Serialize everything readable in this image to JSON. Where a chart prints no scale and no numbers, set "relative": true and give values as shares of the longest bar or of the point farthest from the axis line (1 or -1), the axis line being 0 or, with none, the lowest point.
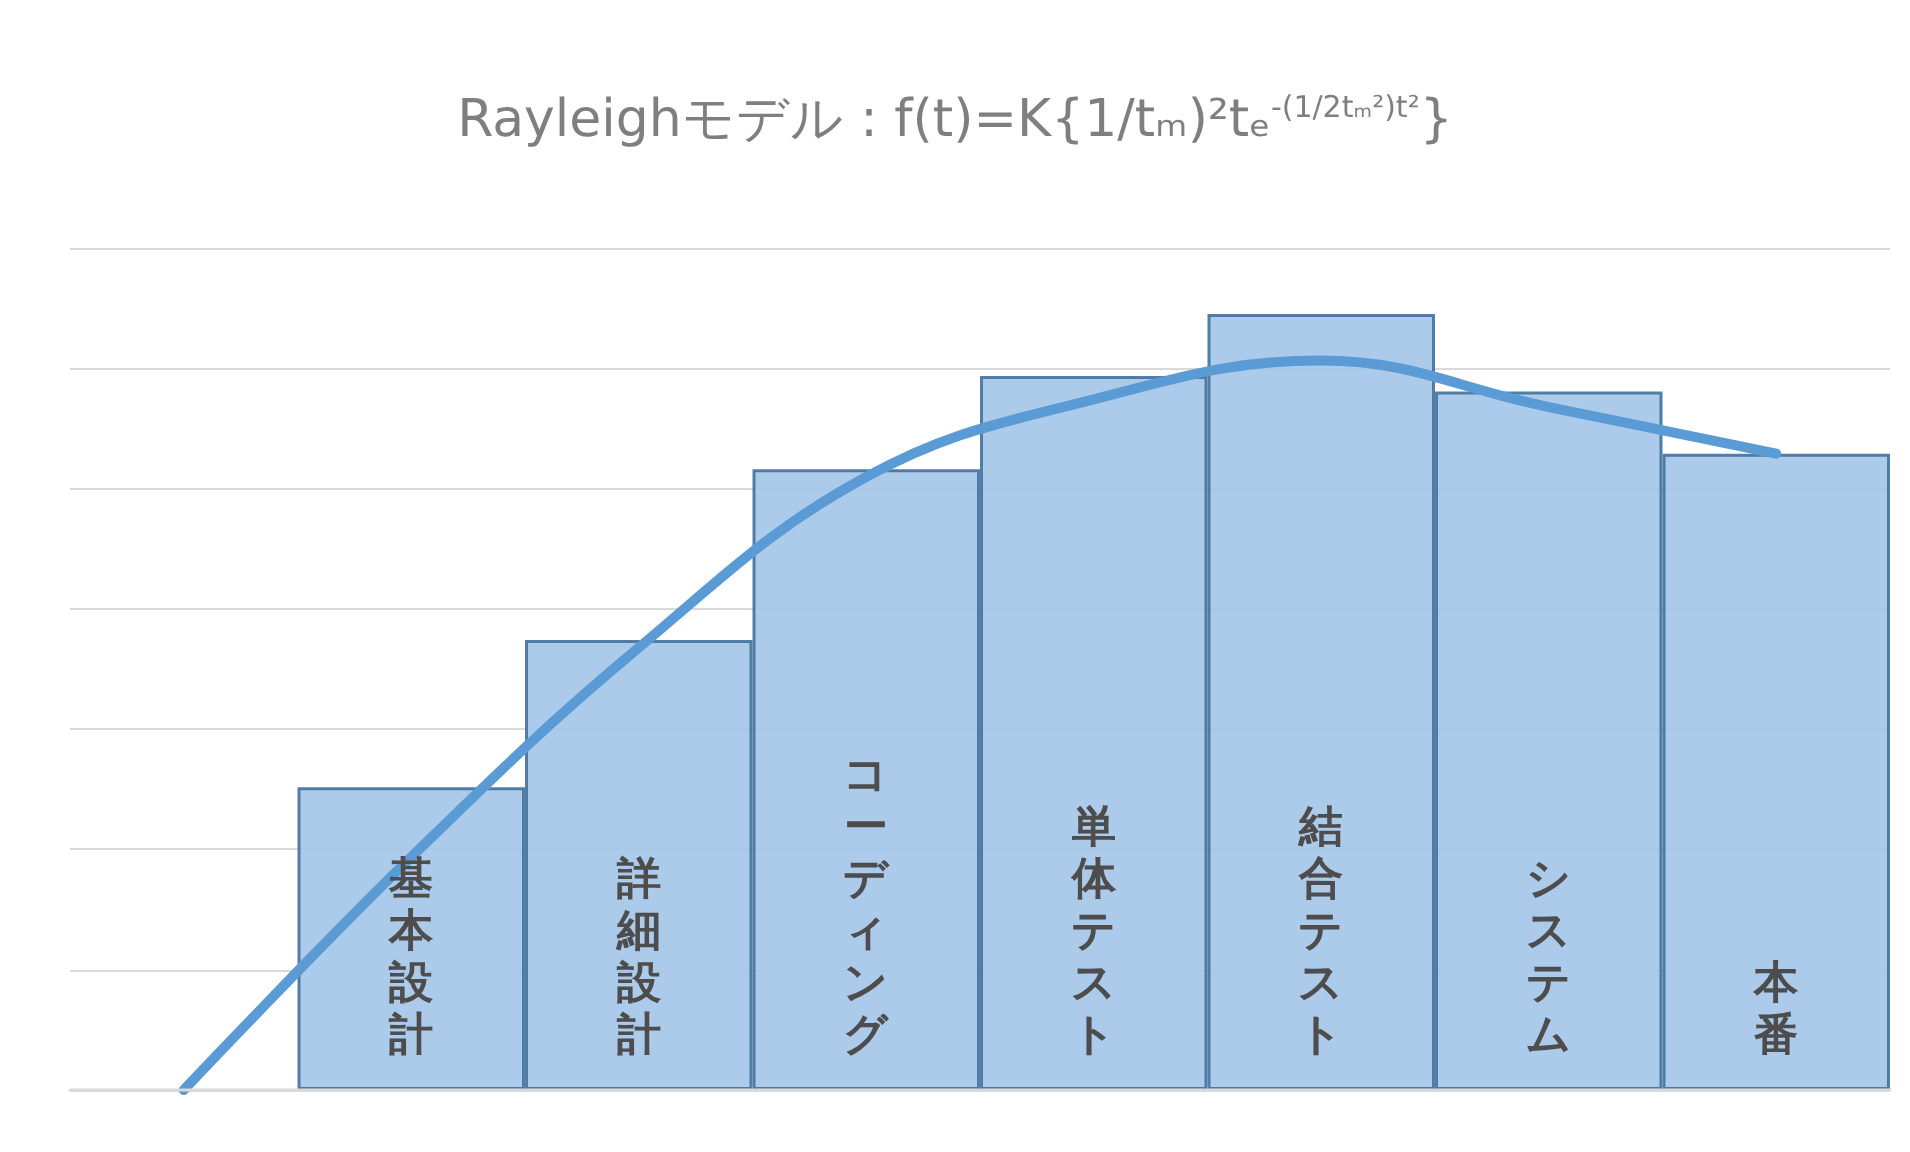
{
  "chart_data": {
    "type": "bar",
    "title": "Rayleighモデル : f(t)=K{1/tₘ)²tₑ$^{-(1/2tₘ²)t²}$}",
    "categories": [
      null,
      "基本設計",
      "詳細設計",
      "コーディング",
      "単体テスト",
      "結合テスト",
      "システム",
      "本番"
    ],
    "relative": true,
    "grid": "y",
    "series": [
      {
        "color": "#a3c4e8",
        "values": [
          null,
          0.39,
          0.58,
          0.8,
          0.92,
          1.0,
          0.9,
          0.82
        ]
      },
      {
        "type": "line",
        "color": "#5b9bd5",
        "marker": "none",
        "line_style": "solid",
        "values": [
          0,
          0.3,
          0.57,
          0.79,
          0.89,
          0.94,
          0.88,
          0.82
        ]
      }
    ]
  }
}
